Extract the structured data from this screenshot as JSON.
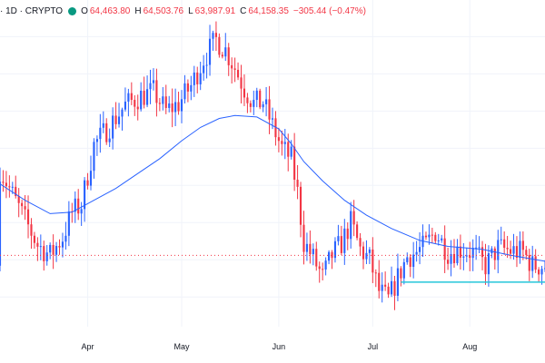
{
  "legend": {
    "symbol_tail": "· 1D · CRYPTO",
    "open_label": "O",
    "open": "64,463.80",
    "high_label": "H",
    "high": "64,503.76",
    "low_label": "L",
    "low": "63,987.91",
    "close_label": "C",
    "close": "64,158.35",
    "change": "−305.44 (−0.47%)"
  },
  "colors": {
    "up": "#2962ff",
    "down": "#f23645",
    "ma": "#2962ff",
    "support": "#26c6da",
    "price_line": "#f23645",
    "grid": "#f0f3fa",
    "status": "#089981"
  },
  "chart_data": {
    "type": "candlestick",
    "timeframe": "1D",
    "x_tick_labels": [
      "Apr",
      "May",
      "Jun",
      "Jul",
      "Aug"
    ],
    "x_ticks": [
      "2024-04-01",
      "2024-05-01",
      "2024-06-01",
      "2024-07-01",
      "2024-08-01"
    ],
    "x_range": [
      "2024-03-04",
      "2024-08-25"
    ],
    "y_range": [
      53000,
      73500
    ],
    "grid": true,
    "moving_average": [
      [
        "2024-03-04",
        62600
      ],
      [
        "2024-03-12",
        61500
      ],
      [
        "2024-03-20",
        60600
      ],
      [
        "2024-03-27",
        60700
      ],
      [
        "2024-04-03",
        61500
      ],
      [
        "2024-04-10",
        62300
      ],
      [
        "2024-04-17",
        63300
      ],
      [
        "2024-04-24",
        64300
      ],
      [
        "2024-05-01",
        65500
      ],
      [
        "2024-05-07",
        66400
      ],
      [
        "2024-05-13",
        67000
      ],
      [
        "2024-05-18",
        67200
      ],
      [
        "2024-05-25",
        67100
      ],
      [
        "2024-06-01",
        66300
      ],
      [
        "2024-06-05",
        65300
      ],
      [
        "2024-06-09",
        64100
      ],
      [
        "2024-06-15",
        62800
      ],
      [
        "2024-06-22",
        61500
      ],
      [
        "2024-06-29",
        60500
      ],
      [
        "2024-07-07",
        59600
      ],
      [
        "2024-07-16",
        58800
      ],
      [
        "2024-07-25",
        58400
      ],
      [
        "2024-08-05",
        58200
      ],
      [
        "2024-08-14",
        57800
      ],
      [
        "2024-08-25",
        57400
      ]
    ],
    "support_line": {
      "value": 56000,
      "from": "2024-07-10",
      "to": "2024-08-25"
    },
    "last_price": 57800,
    "waypoints": [
      [
        "2024-03-04",
        63600
      ],
      [
        "2024-03-10",
        61000
      ],
      [
        "2024-03-16",
        58500
      ],
      [
        "2024-03-20",
        57800
      ],
      [
        "2024-03-24",
        59000
      ],
      [
        "2024-03-27",
        60700
      ],
      [
        "2024-03-30",
        61200
      ],
      [
        "2024-04-03",
        65200
      ],
      [
        "2024-04-08",
        66500
      ],
      [
        "2024-04-13",
        67900
      ],
      [
        "2024-04-18",
        68500
      ],
      [
        "2024-04-22",
        68800
      ],
      [
        "2024-04-26",
        67500
      ],
      [
        "2024-04-30",
        68000
      ],
      [
        "2024-05-04",
        69200
      ],
      [
        "2024-05-08",
        71000
      ],
      [
        "2024-05-12",
        72300
      ],
      [
        "2024-05-15",
        71600
      ],
      [
        "2024-05-18",
        70400
      ],
      [
        "2024-05-21",
        69000
      ],
      [
        "2024-05-24",
        68000
      ],
      [
        "2024-05-27",
        68100
      ],
      [
        "2024-05-30",
        66500
      ],
      [
        "2024-06-02",
        65000
      ],
      [
        "2024-06-05",
        64300
      ],
      [
        "2024-06-07",
        62000
      ],
      [
        "2024-06-09",
        58700
      ],
      [
        "2024-06-12",
        57600
      ],
      [
        "2024-06-15",
        56300
      ],
      [
        "2024-06-18",
        57800
      ],
      [
        "2024-06-21",
        58600
      ],
      [
        "2024-06-24",
        60000
      ],
      [
        "2024-06-27",
        58200
      ],
      [
        "2024-06-30",
        57500
      ],
      [
        "2024-07-03",
        55400
      ],
      [
        "2024-07-06",
        54800
      ],
      [
        "2024-07-09",
        56300
      ],
      [
        "2024-07-12",
        57700
      ],
      [
        "2024-07-15",
        58000
      ],
      [
        "2024-07-18",
        58500
      ],
      [
        "2024-07-21",
        59400
      ],
      [
        "2024-07-25",
        58000
      ],
      [
        "2024-07-29",
        58200
      ],
      [
        "2024-08-02",
        58000
      ],
      [
        "2024-08-06",
        57100
      ],
      [
        "2024-08-10",
        58300
      ],
      [
        "2024-08-14",
        58100
      ],
      [
        "2024-08-18",
        58000
      ],
      [
        "2024-08-21",
        57100
      ],
      [
        "2024-08-25",
        57100
      ]
    ]
  }
}
